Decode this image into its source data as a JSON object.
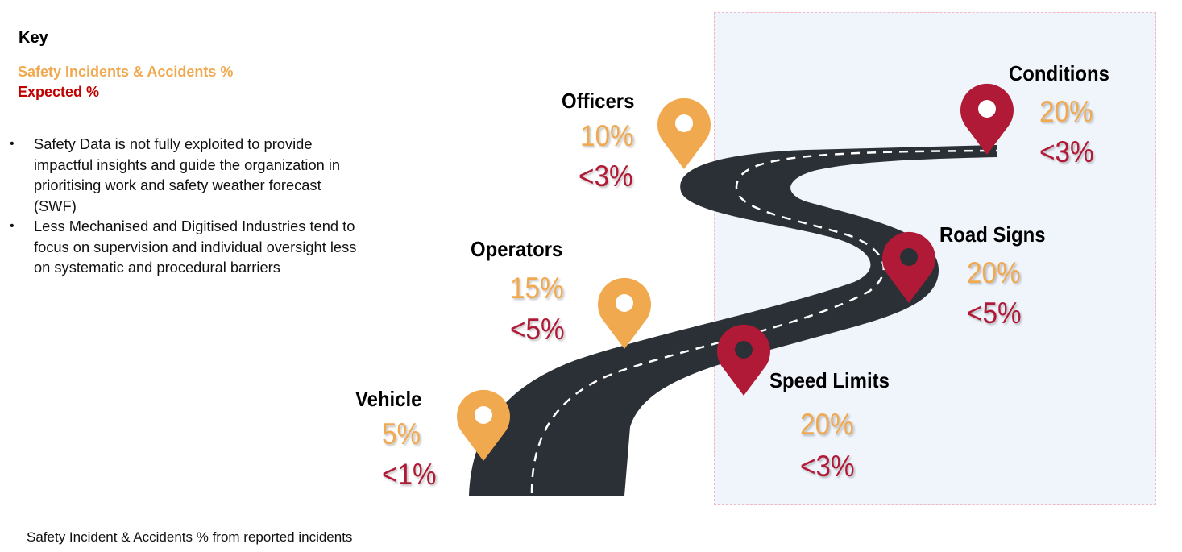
{
  "key": {
    "title": "Key",
    "incidents_label": "Safety Incidents & Accidents %",
    "expected_label": "Expected %"
  },
  "bullets": [
    "Safety Data is not fully exploited to provide impactful insights and guide the organization in prioritising work and safety weather forecast (SWF)",
    "Less Mechanised and Digitised Industries tend to focus on supervision and individual oversight less on systematic and procedural barriers"
  ],
  "caption": "Safety Incident & Accidents % from reported incidents",
  "colors": {
    "incident": "#f1a950",
    "expected": "#b11a36",
    "key_expected": "#c00000",
    "road": "#2b2f36",
    "panel": "#f0f5fc",
    "panel_border": "#f2b8c6"
  },
  "milestones": [
    {
      "name": "Vehicle",
      "incident": "5%",
      "expected": "<1%",
      "pin_color": "orange"
    },
    {
      "name": "Operators",
      "incident": "15%",
      "expected": "<5%",
      "pin_color": "orange"
    },
    {
      "name": "Officers",
      "incident": "10%",
      "expected": "<3%",
      "pin_color": "orange"
    },
    {
      "name": "Speed Limits",
      "incident": "20%",
      "expected": "<3%",
      "pin_color": "red"
    },
    {
      "name": "Road Signs",
      "incident": "20%",
      "expected": "<5%",
      "pin_color": "red"
    },
    {
      "name": "Conditions",
      "incident": "20%",
      "expected": "<3%",
      "pin_color": "red"
    }
  ]
}
